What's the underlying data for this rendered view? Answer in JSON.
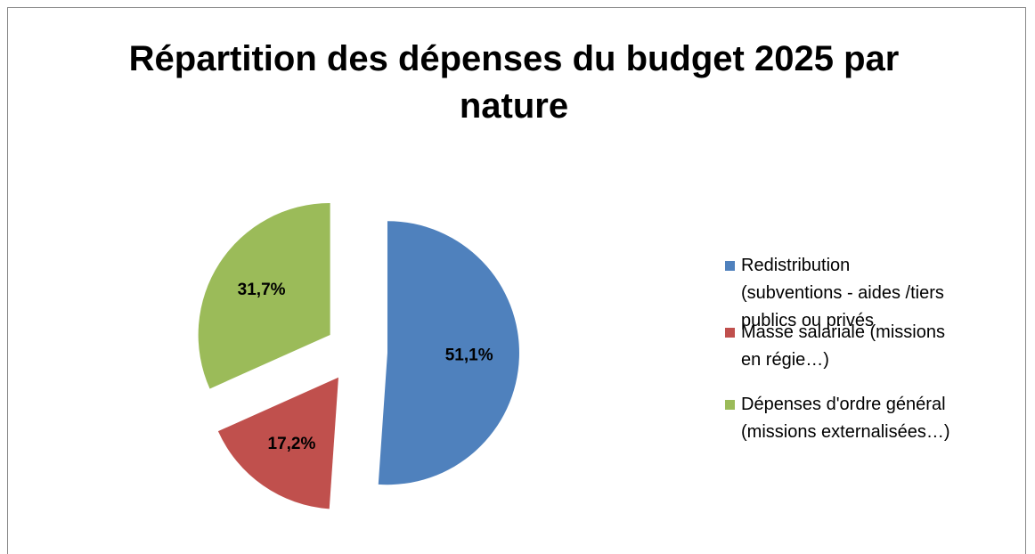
{
  "chart_data": {
    "type": "pie",
    "title": "Répartition des dépenses du budget 2025 par nature",
    "categories": [
      "Redistribution (subventions - aides /tiers publics ou privés",
      "Masse salariale (missions en régie…)",
      "Dépenses d'ordre général (missions externalisées…)"
    ],
    "values": [
      51.1,
      17.2,
      31.7
    ],
    "value_labels": [
      "51,1%",
      "17,2%",
      "31,7%"
    ],
    "colors": [
      "#4f81bd",
      "#c0504d",
      "#9bbb59"
    ],
    "legend": "right"
  }
}
